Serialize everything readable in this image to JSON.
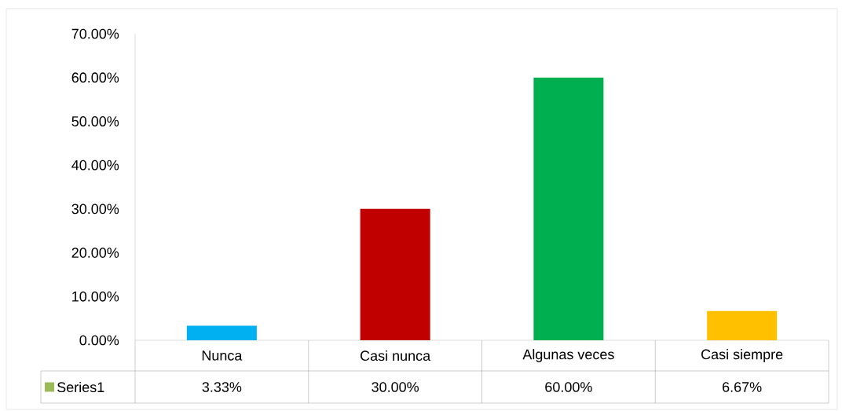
{
  "chart_data": {
    "type": "bar",
    "categories": [
      "Nunca",
      "Casi nunca",
      "Algunas veces",
      "Casi siempre"
    ],
    "series": [
      {
        "name": "Series1",
        "color": "#9bbb59",
        "colors": [
          "#00b0f0",
          "#c00000",
          "#00b050",
          "#ffc000"
        ],
        "values": [
          3.33,
          30.0,
          60.0,
          6.67
        ],
        "value_labels": [
          "3.33%",
          "30.00%",
          "60.00%",
          "6.67%"
        ]
      }
    ],
    "ylim": [
      0,
      70
    ],
    "yticks": [
      {
        "value": 0,
        "label": "0.00%"
      },
      {
        "value": 10,
        "label": "10.00%"
      },
      {
        "value": 20,
        "label": "20.00%"
      },
      {
        "value": 30,
        "label": "30.00%"
      },
      {
        "value": 40,
        "label": "40.00%"
      },
      {
        "value": 50,
        "label": "50.00%"
      },
      {
        "value": 60,
        "label": "60.00%"
      },
      {
        "value": 70,
        "label": "70.00%"
      }
    ],
    "legend": "bottom"
  }
}
